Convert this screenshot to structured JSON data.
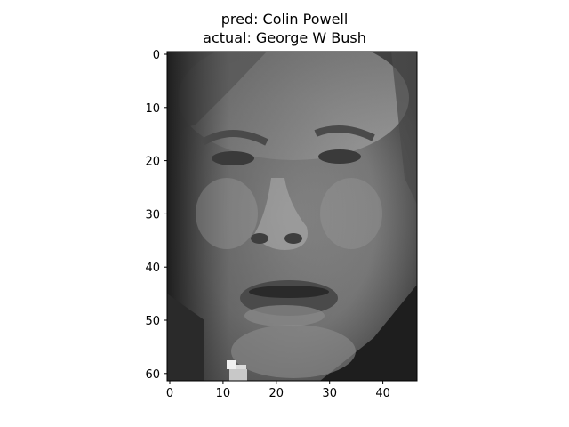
{
  "figure": {
    "title_line1": "pred: Colin Powell",
    "title_line2": "actual: George W Bush"
  },
  "image_axes": {
    "x_ticks": [
      "0",
      "10",
      "20",
      "30",
      "40"
    ],
    "y_ticks": [
      "0",
      "10",
      "20",
      "30",
      "40",
      "50",
      "60"
    ],
    "colormap": "grayscale",
    "content": "grayscale face photo"
  },
  "colors": {
    "background": "#ffffff",
    "axis": "#000000"
  }
}
